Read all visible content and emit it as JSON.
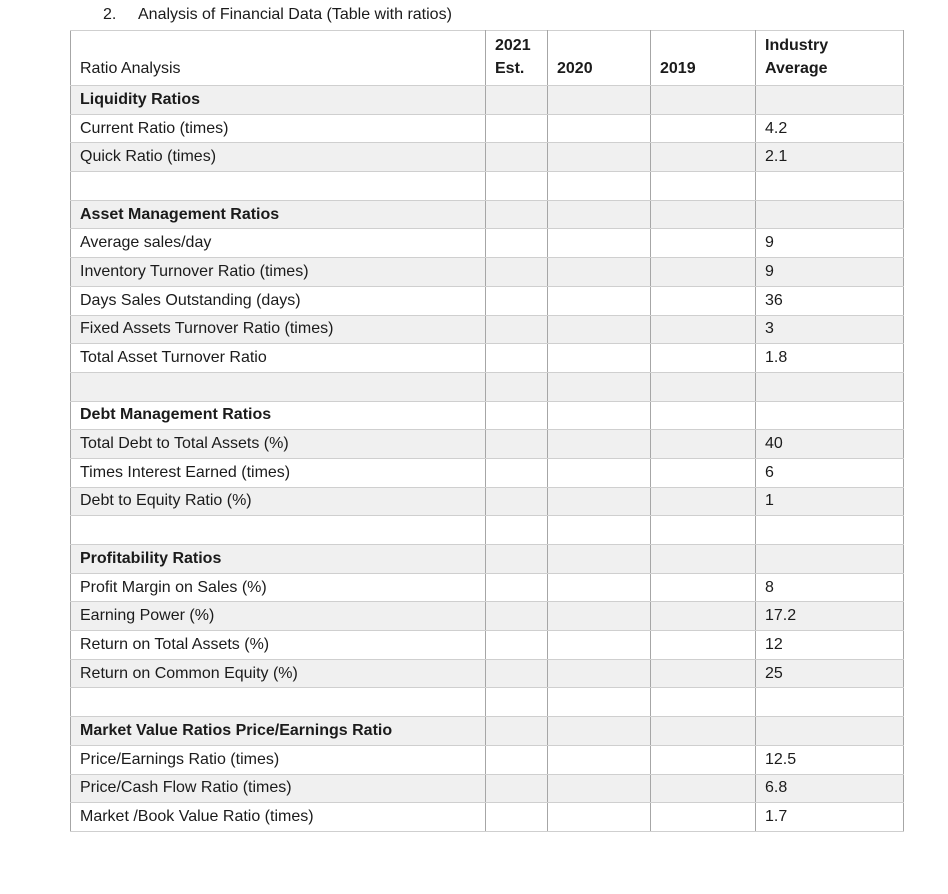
{
  "heading": {
    "number": "2.",
    "text": "Analysis of Financial Data (Table with ratios)"
  },
  "colors": {
    "row_shading": "#f0f0f0",
    "border_vertical": "#a6a6a6",
    "border_horizontal": "#cfcfcf"
  },
  "table": {
    "columns": [
      "Ratio Analysis",
      "2021\nEst.",
      "2020",
      "2019",
      "Industry\nAverage"
    ],
    "rows": [
      {
        "label": "Liquidity Ratios",
        "section": true,
        "shaded": true,
        "values": {
          "est_2021": "",
          "y2020": "",
          "y2019": "",
          "industry_avg": ""
        }
      },
      {
        "label": "Current Ratio (times)",
        "section": false,
        "shaded": false,
        "values": {
          "est_2021": "",
          "y2020": "",
          "y2019": "",
          "industry_avg": "4.2"
        }
      },
      {
        "label": "Quick Ratio (times)",
        "section": false,
        "shaded": true,
        "values": {
          "est_2021": "",
          "y2020": "",
          "y2019": "",
          "industry_avg": "2.1"
        }
      },
      {
        "label": "",
        "section": false,
        "shaded": false,
        "values": {
          "est_2021": "",
          "y2020": "",
          "y2019": "",
          "industry_avg": ""
        }
      },
      {
        "label": "Asset Management Ratios",
        "section": true,
        "shaded": true,
        "values": {
          "est_2021": "",
          "y2020": "",
          "y2019": "",
          "industry_avg": ""
        }
      },
      {
        "label": "Average sales/day",
        "section": false,
        "shaded": false,
        "values": {
          "est_2021": "",
          "y2020": "",
          "y2019": "",
          "industry_avg": "9"
        }
      },
      {
        "label": "Inventory Turnover Ratio (times)",
        "section": false,
        "shaded": true,
        "values": {
          "est_2021": "",
          "y2020": "",
          "y2019": "",
          "industry_avg": "9"
        }
      },
      {
        "label": "Days Sales Outstanding (days)",
        "section": false,
        "shaded": false,
        "values": {
          "est_2021": "",
          "y2020": "",
          "y2019": "",
          "industry_avg": "36"
        }
      },
      {
        "label": "Fixed Assets Turnover Ratio (times)",
        "section": false,
        "shaded": true,
        "values": {
          "est_2021": "",
          "y2020": "",
          "y2019": "",
          "industry_avg": "3"
        }
      },
      {
        "label": "Total Asset Turnover Ratio",
        "section": false,
        "shaded": false,
        "values": {
          "est_2021": "",
          "y2020": "",
          "y2019": "",
          "industry_avg": "1.8"
        }
      },
      {
        "label": "",
        "section": false,
        "shaded": true,
        "values": {
          "est_2021": "",
          "y2020": "",
          "y2019": "",
          "industry_avg": ""
        }
      },
      {
        "label": "Debt Management Ratios",
        "section": true,
        "shaded": false,
        "values": {
          "est_2021": "",
          "y2020": "",
          "y2019": "",
          "industry_avg": ""
        }
      },
      {
        "label": "Total Debt to Total Assets (%)",
        "section": false,
        "shaded": true,
        "values": {
          "est_2021": "",
          "y2020": "",
          "y2019": "",
          "industry_avg": "40"
        }
      },
      {
        "label": "Times Interest Earned (times)",
        "section": false,
        "shaded": false,
        "values": {
          "est_2021": "",
          "y2020": "",
          "y2019": "",
          "industry_avg": "6"
        }
      },
      {
        "label": "Debt to Equity Ratio (%)",
        "section": false,
        "shaded": true,
        "values": {
          "est_2021": "",
          "y2020": "",
          "y2019": "",
          "industry_avg": "1"
        }
      },
      {
        "label": "",
        "section": false,
        "shaded": false,
        "values": {
          "est_2021": "",
          "y2020": "",
          "y2019": "",
          "industry_avg": ""
        }
      },
      {
        "label": "Profitability Ratios",
        "section": true,
        "shaded": true,
        "values": {
          "est_2021": "",
          "y2020": "",
          "y2019": "",
          "industry_avg": ""
        }
      },
      {
        "label": "Profit Margin on Sales (%)",
        "section": false,
        "shaded": false,
        "values": {
          "est_2021": "",
          "y2020": "",
          "y2019": "",
          "industry_avg": "8"
        }
      },
      {
        "label": "Earning Power (%)",
        "section": false,
        "shaded": true,
        "values": {
          "est_2021": "",
          "y2020": "",
          "y2019": "",
          "industry_avg": "17.2"
        }
      },
      {
        "label": "Return on Total Assets (%)",
        "section": false,
        "shaded": false,
        "values": {
          "est_2021": "",
          "y2020": "",
          "y2019": "",
          "industry_avg": "12"
        }
      },
      {
        "label": "Return on Common Equity (%)",
        "section": false,
        "shaded": true,
        "values": {
          "est_2021": "",
          "y2020": "",
          "y2019": "",
          "industry_avg": "25"
        }
      },
      {
        "label": "",
        "section": false,
        "shaded": false,
        "values": {
          "est_2021": "",
          "y2020": "",
          "y2019": "",
          "industry_avg": ""
        }
      },
      {
        "label": "Market Value Ratios Price/Earnings Ratio",
        "section": true,
        "shaded": true,
        "values": {
          "est_2021": "",
          "y2020": "",
          "y2019": "",
          "industry_avg": ""
        }
      },
      {
        "label": "Price/Earnings Ratio (times)",
        "section": false,
        "shaded": false,
        "values": {
          "est_2021": "",
          "y2020": "",
          "y2019": "",
          "industry_avg": "12.5"
        }
      },
      {
        "label": "Price/Cash Flow Ratio (times)",
        "section": false,
        "shaded": true,
        "values": {
          "est_2021": "",
          "y2020": "",
          "y2019": "",
          "industry_avg": "6.8"
        }
      },
      {
        "label": "Market /Book Value Ratio (times)",
        "section": false,
        "shaded": false,
        "values": {
          "est_2021": "",
          "y2020": "",
          "y2019": "",
          "industry_avg": "1.7"
        }
      }
    ]
  }
}
